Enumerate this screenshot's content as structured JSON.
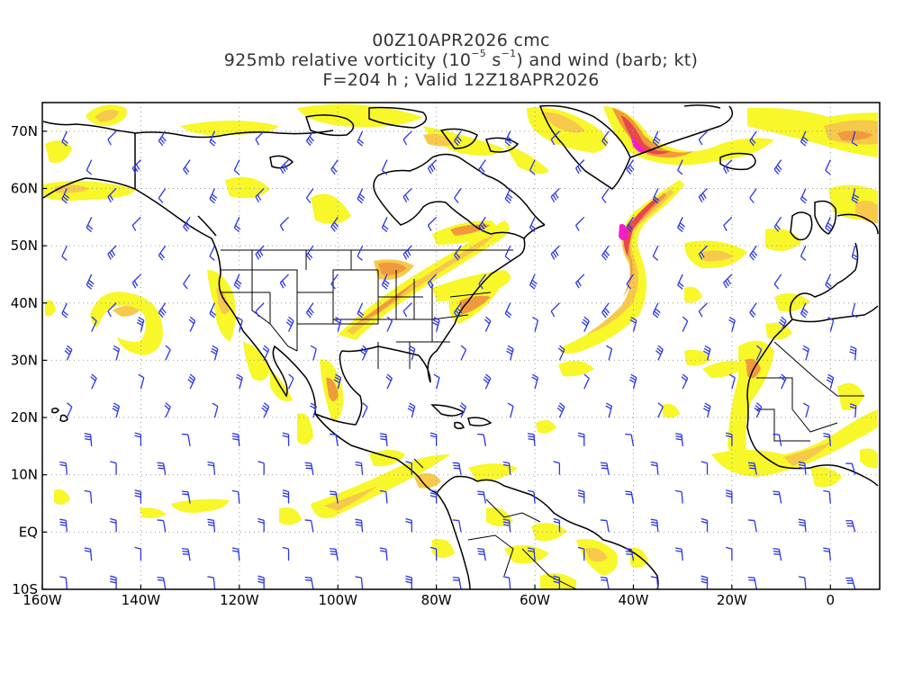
{
  "title": {
    "line1": "00Z10APR2026 cmc",
    "line2_pre": "925mb relative vorticity (10",
    "line2_exp1": "−5",
    "line2_mid": " s",
    "line2_exp2": "−1",
    "line2_post": ") and wind (barb; kt)",
    "line3": "F=204 h ; Valid 12Z18APR2026"
  },
  "axes": {
    "y_labels": [
      "70N",
      "60N",
      "50N",
      "40N",
      "30N",
      "20N",
      "10N",
      "EQ",
      "10S"
    ],
    "x_labels": [
      "160W",
      "140W",
      "120W",
      "100W",
      "80W",
      "60W",
      "40W",
      "20W",
      "0"
    ],
    "lon_range": [
      -160,
      10
    ],
    "lat_range": [
      -10,
      75
    ],
    "grid": "dotted"
  },
  "colors": {
    "shade_light": "#f7f72a",
    "shade_mid": "#f7c94a",
    "shade_orange": "#f09a3c",
    "shade_red": "#e6484a",
    "shade_magenta": "#f21ec8",
    "barb": "#2a36e8",
    "coast": "#000000"
  },
  "icons": [
    "wind-barb-icon"
  ]
}
